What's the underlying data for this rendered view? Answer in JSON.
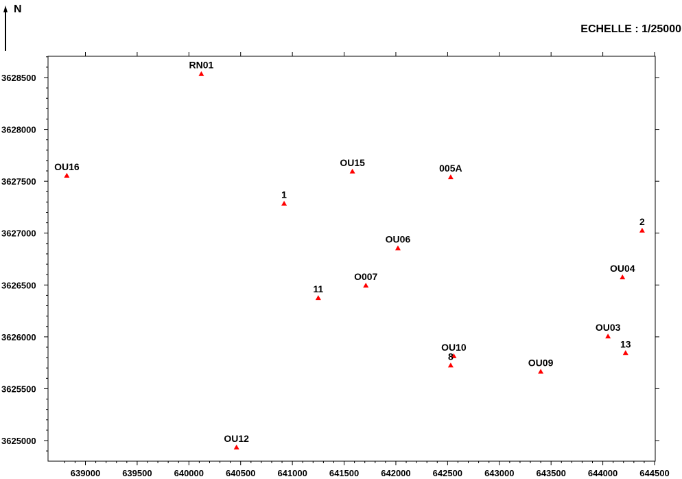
{
  "north_label": "N",
  "scale_label": "ECHELLE : 1/25000",
  "marker_color": "#ff0000",
  "marker_icon": "triangle-marker",
  "chart_data": {
    "type": "scatter",
    "xlim": [
      638700,
      644500
    ],
    "ylim": [
      3624800,
      3628800
    ],
    "x_ticks": [
      639000,
      639500,
      640000,
      640500,
      641000,
      641500,
      642000,
      642500,
      643000,
      643500,
      644000,
      644500
    ],
    "x_tick_labels": [
      "639000",
      "639500",
      "640000",
      "640500",
      "641000",
      "641500",
      "642000",
      "642500",
      "643000",
      "643500",
      "644000",
      "644500"
    ],
    "y_ticks": [
      3625000,
      3625500,
      3626000,
      3626500,
      3627000,
      3627500,
      3628000,
      3628500
    ],
    "y_tick_labels": [
      "3625000",
      "3625500",
      "3626000",
      "3626500",
      "3627000",
      "3627500",
      "3628000",
      "3628500"
    ],
    "points": [
      {
        "label": "RN01",
        "x": 640120,
        "y": 3628535
      },
      {
        "label": "OU16",
        "x": 638820,
        "y": 3627555
      },
      {
        "label": "OU15",
        "x": 641580,
        "y": 3627595
      },
      {
        "label": "005A",
        "x": 642530,
        "y": 3627540
      },
      {
        "label": "1",
        "x": 640920,
        "y": 3627285
      },
      {
        "label": "2",
        "x": 644380,
        "y": 3627025
      },
      {
        "label": "OU06",
        "x": 642020,
        "y": 3626855
      },
      {
        "label": "OU04",
        "x": 644190,
        "y": 3626575
      },
      {
        "label": "O007",
        "x": 641710,
        "y": 3626495
      },
      {
        "label": "11",
        "x": 641250,
        "y": 3626375
      },
      {
        "label": "OU03",
        "x": 644050,
        "y": 3626005
      },
      {
        "label": "13",
        "x": 644220,
        "y": 3625845
      },
      {
        "label": "OU10",
        "x": 642560,
        "y": 3625815
      },
      {
        "label": "8",
        "x": 642530,
        "y": 3625725
      },
      {
        "label": "OU09",
        "x": 643400,
        "y": 3625665
      },
      {
        "label": "OU12",
        "x": 640460,
        "y": 3624935
      }
    ]
  }
}
